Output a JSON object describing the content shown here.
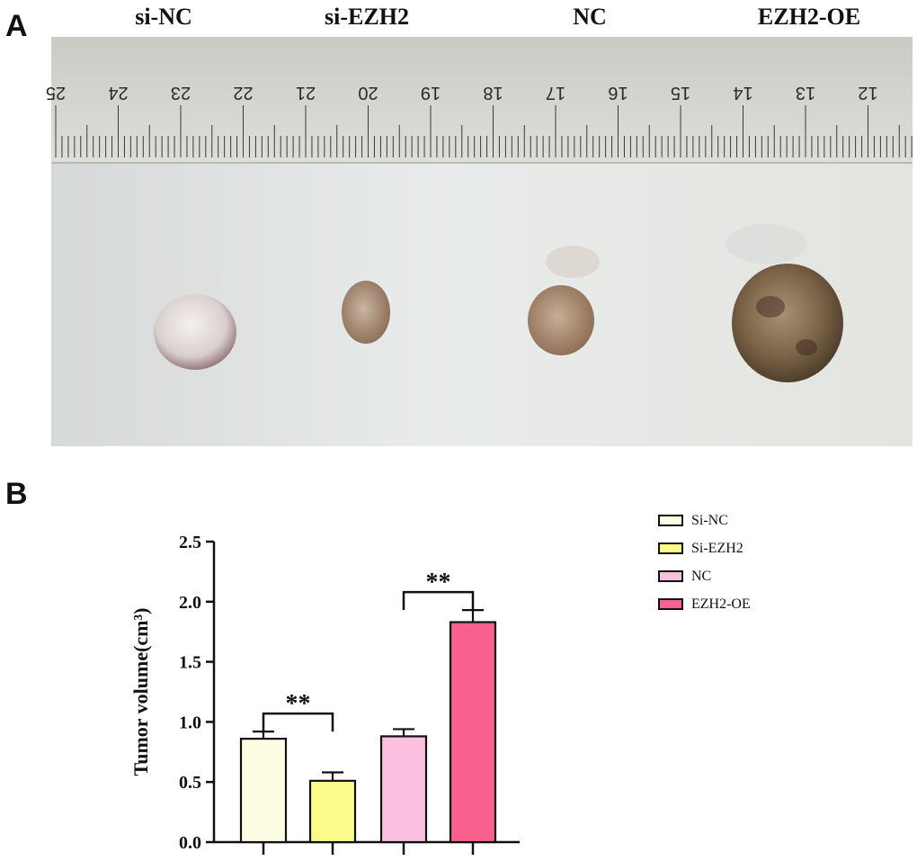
{
  "panel_a": {
    "letter": "A",
    "group_labels": [
      "si-NC",
      "si-EZH2",
      "NC",
      "EZH2-OE"
    ],
    "ruler_numbers": [
      "25",
      "24",
      "23",
      "22",
      "21",
      "20",
      "19",
      "18",
      "17",
      "16",
      "15",
      "14",
      "13",
      "12"
    ]
  },
  "panel_b": {
    "letter": "B"
  },
  "chart_data": {
    "type": "bar",
    "categories": [
      "Si-NC",
      "Si-EZH2",
      "NC",
      "EZH2-OE"
    ],
    "values": [
      0.86,
      0.51,
      0.88,
      1.83
    ],
    "error": [
      0.06,
      0.07,
      0.06,
      0.1
    ],
    "colors": [
      "#fdfde3",
      "#fbfb8c",
      "#fbbfe0",
      "#f8608e"
    ],
    "ylabel": "Tumor volume(cm³)",
    "ylim": [
      0,
      2.5
    ],
    "yticks": [
      "0.0",
      "0.5",
      "1.0",
      "1.5",
      "2.0",
      "2.5"
    ],
    "significance": [
      {
        "from": 0,
        "to": 1,
        "label": "**"
      },
      {
        "from": 2,
        "to": 3,
        "label": "**"
      }
    ],
    "legend": {
      "position": "right",
      "labels": [
        "Si-NC",
        "Si-EZH2",
        "NC",
        "EZH2-OE"
      ]
    },
    "grid": false
  }
}
